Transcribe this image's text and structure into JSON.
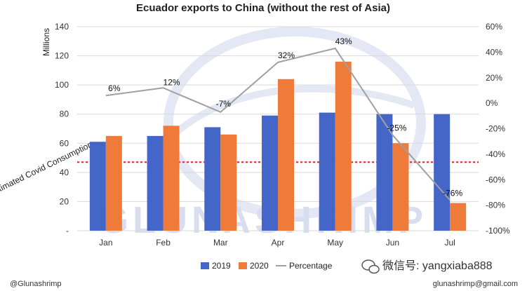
{
  "colors": {
    "bar_2019": "#4466c8",
    "bar_2020": "#ee7b39",
    "line": "#a0a0a0",
    "reference": "#e02020",
    "watermark": "#d8def0"
  },
  "chart_data": {
    "type": "bar",
    "title": "Ecuador exports to China (without the rest of Asia)",
    "ylabel": "Millions",
    "y2label": "",
    "categories": [
      "Jan",
      "Feb",
      "Mar",
      "Apr",
      "May",
      "Jun",
      "Jul"
    ],
    "ylim": [
      0,
      140
    ],
    "yticks": [
      0,
      20,
      40,
      60,
      80,
      100,
      120,
      140
    ],
    "ytick_labels": [
      "-",
      "20",
      "40",
      "60",
      "80",
      "100",
      "120",
      "140"
    ],
    "y2lim": [
      -100,
      60
    ],
    "y2ticks": [
      -100,
      -80,
      -60,
      -40,
      -20,
      0,
      20,
      40,
      60
    ],
    "y2tick_labels": [
      "-100%",
      "-80%",
      "-60%",
      "-40%",
      "-20%",
      "0%",
      "20%",
      "40%",
      "60%"
    ],
    "series": [
      {
        "name": "2019",
        "type": "bar",
        "axis": "left",
        "values": [
          61,
          65,
          71,
          79,
          81,
          80,
          80
        ]
      },
      {
        "name": "2020",
        "type": "bar",
        "axis": "left",
        "values": [
          65,
          72,
          66,
          104,
          116,
          60,
          19
        ]
      },
      {
        "name": "Percentage",
        "type": "line",
        "axis": "right",
        "values": [
          6,
          12,
          -7,
          32,
          43,
          -25,
          -76
        ],
        "labels": [
          "6%",
          "12%",
          "-7%",
          "32%",
          "43%",
          "-25%",
          "-76%"
        ]
      }
    ],
    "reference_line": {
      "label": "Estimated Covid Consumption",
      "value": 47
    },
    "legend": "bottom-center",
    "grid": true
  },
  "watermark": {
    "text": "GLUNASHRIMP"
  },
  "footer": {
    "brand_left": "@Glunashrimp",
    "wechat_prefix": "微信号: ",
    "wechat_id": "yangxiaba888",
    "email": "glunashrimp@gmail.com"
  }
}
